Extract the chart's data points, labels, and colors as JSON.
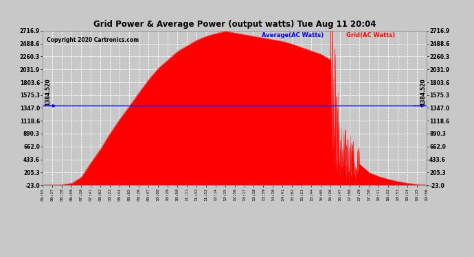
{
  "title": "Grid Power & Average Power (output watts) Tue Aug 11 20:04",
  "copyright": "Copyright 2020 Cartronics.com",
  "legend_avg": "Average(AC Watts)",
  "legend_grid": "Grid(AC Watts)",
  "avg_value": 1384.52,
  "avg_label": "1384.520",
  "ymin": -23.0,
  "ymax": 2716.9,
  "yticks": [
    -23.0,
    205.3,
    433.6,
    662.0,
    890.3,
    1118.6,
    1347.0,
    1575.3,
    1803.6,
    2031.9,
    2260.3,
    2488.6,
    2716.9
  ],
  "fill_color": "red",
  "avg_line_color": "blue",
  "bg_color": "#c8c8c8",
  "plot_bg_color": "#c8c8c8",
  "x_times": [
    "05:55",
    "06:17",
    "06:38",
    "06:59",
    "07:20",
    "07:41",
    "08:02",
    "08:23",
    "08:44",
    "09:05",
    "09:26",
    "09:47",
    "10:08",
    "10:29",
    "10:50",
    "11:11",
    "11:32",
    "11:53",
    "12:14",
    "12:35",
    "12:56",
    "13:17",
    "13:38",
    "13:59",
    "14:20",
    "14:41",
    "15:02",
    "15:23",
    "15:44",
    "16:05",
    "16:26",
    "16:47",
    "17:08",
    "17:29",
    "17:50",
    "18:11",
    "18:32",
    "18:53",
    "19:14",
    "19:35",
    "19:56"
  ],
  "y_data": [
    -23,
    -20,
    -15,
    10,
    120,
    380,
    620,
    900,
    1150,
    1380,
    1620,
    1850,
    2050,
    2200,
    2350,
    2450,
    2550,
    2620,
    2670,
    2710,
    2680,
    2650,
    2620,
    2590,
    2560,
    2530,
    2480,
    2420,
    2360,
    2300,
    2200,
    600,
    500,
    350,
    200,
    130,
    80,
    40,
    10,
    -10,
    -23
  ]
}
